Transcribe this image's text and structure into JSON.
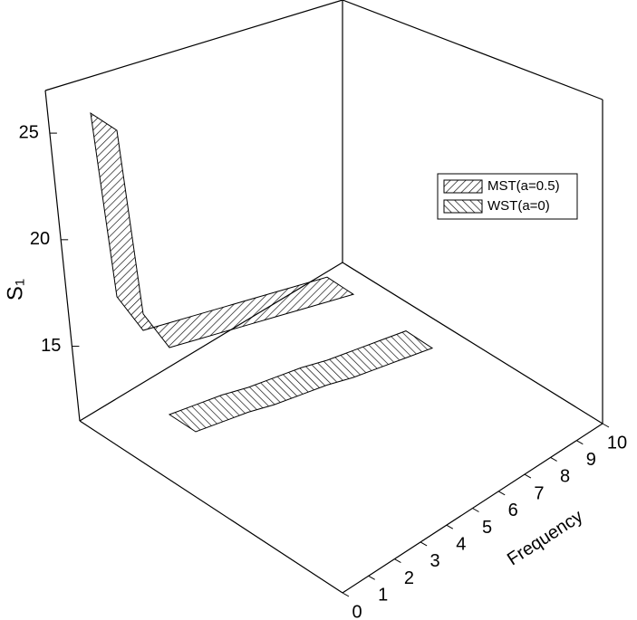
{
  "chart_data": {
    "type": "ribbon3d",
    "xlabel": "Frequency",
    "ylabel": "S₁",
    "x": [
      1,
      2,
      3,
      4,
      5,
      6,
      7,
      8,
      9,
      10
    ],
    "xlim": [
      0,
      10
    ],
    "xticks": [
      0,
      1,
      2,
      3,
      4,
      5,
      6,
      7,
      8,
      9,
      10
    ],
    "ylim": [
      11.5,
      27
    ],
    "yticks": [
      15,
      20,
      25
    ],
    "legend": "upper right",
    "series": [
      {
        "name": "MST(a=0.5)",
        "hatch": "/",
        "values": [
          25.5,
          16.8,
          15.0,
          15.1,
          15.2,
          15.3,
          15.4,
          15.5,
          15.6,
          15.7
        ]
      },
      {
        "name": "WST(a=0)",
        "hatch": "\\",
        "values": [
          14.0,
          14.2,
          14.4,
          14.5,
          14.7,
          14.9,
          15.0,
          15.2,
          15.4,
          15.6
        ]
      }
    ]
  }
}
